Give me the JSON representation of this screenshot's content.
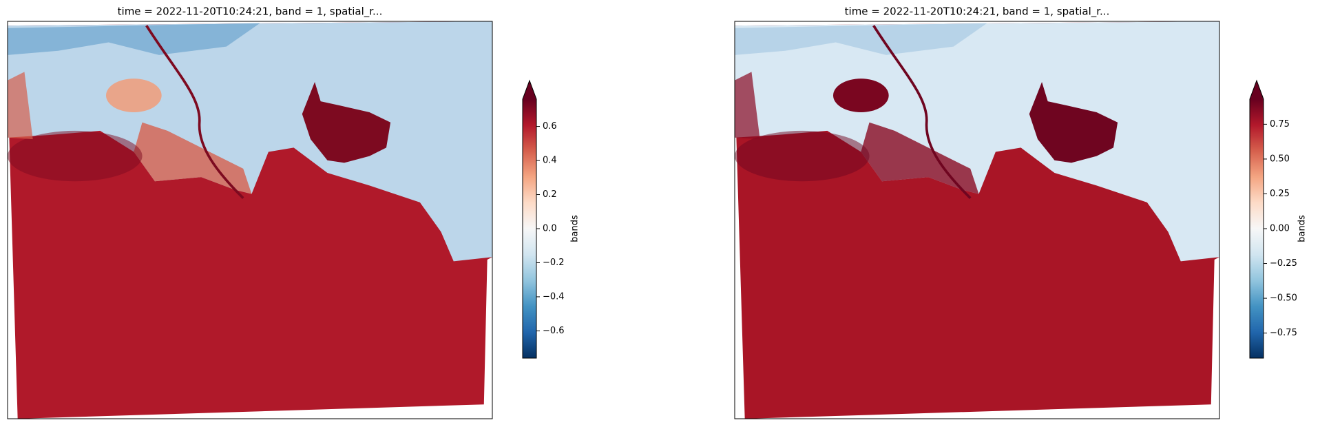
{
  "chart_data": [
    {
      "type": "image",
      "title": "time = 2022-11-20T10:24:21, band = 1, spatial_r...",
      "colorbar_label": "bands",
      "ylim": [
        -0.76,
        0.76
      ],
      "yticks": [
        {
          "value": -0.6,
          "label": "−0.6"
        },
        {
          "value": -0.4,
          "label": "−0.4"
        },
        {
          "value": -0.2,
          "label": "−0.2"
        },
        {
          "value": 0.0,
          "label": "0.0"
        },
        0.2,
        0.4,
        0.6
      ],
      "extend": "max"
    },
    {
      "type": "image",
      "title": "time = 2022-11-20T10:24:21, band = 1, spatial_r...",
      "colorbar_label": "bands",
      "ylim": [
        -0.93,
        0.93
      ],
      "yticks": [
        {
          "value": -0.75,
          "label": "−0.75"
        },
        {
          "value": -0.5,
          "label": "−0.50"
        },
        {
          "value": -0.25,
          "label": "−0.25"
        },
        {
          "value": 0,
          "label": "0.00"
        },
        0.25,
        {
          "value": 0.5,
          "label": "0.50"
        },
        0.75
      ],
      "extend": "max"
    }
  ]
}
